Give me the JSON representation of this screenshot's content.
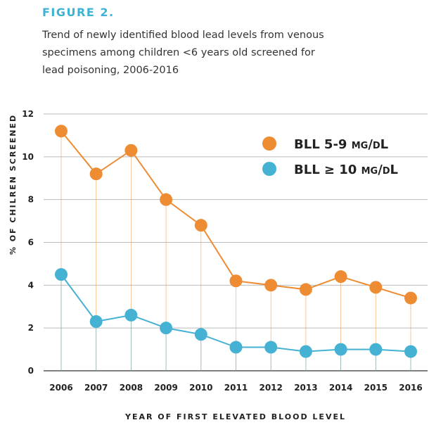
{
  "chart_data": {
    "type": "line",
    "figure_label": "FIGURE 2.",
    "title": "Trend of newly identified blood lead levels from venous specimens among children <6 years old screened for lead poisoning, 2006-2016",
    "xlabel": "YEAR OF FIRST ELEVATED BLOOD LEVEL",
    "ylabel": "% OF CHILREN SCREENED",
    "ylim": [
      0,
      12
    ],
    "yticks": [
      0,
      2,
      4,
      6,
      8,
      10,
      12
    ],
    "grid": true,
    "legend_placement": "top-right",
    "categories": [
      "2006",
      "2007",
      "2008",
      "2009",
      "2010",
      "2011",
      "2012",
      "2013",
      "2014",
      "2015",
      "2016"
    ],
    "series": [
      {
        "name": "BLL 5-9 µg/dL",
        "color": "#ee8c33",
        "values": [
          11.2,
          9.2,
          10.3,
          8.0,
          6.8,
          4.2,
          4.0,
          3.8,
          4.4,
          3.9,
          3.4
        ]
      },
      {
        "name": "BLL ≥ 10 µg/dL",
        "color": "#45b2d4",
        "values": [
          4.5,
          2.3,
          2.6,
          2.0,
          1.7,
          1.1,
          1.1,
          0.9,
          1.0,
          1.0,
          0.9
        ]
      }
    ]
  }
}
